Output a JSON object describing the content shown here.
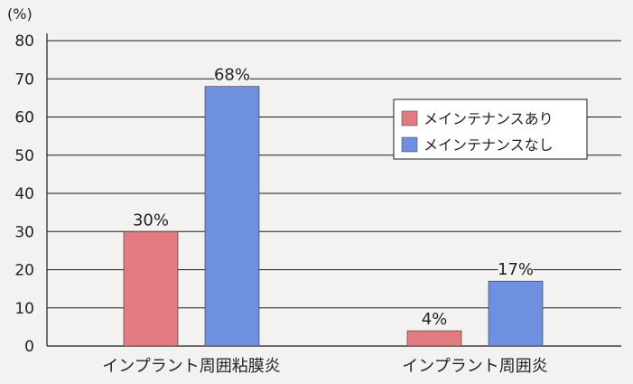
{
  "chart_data": {
    "type": "bar",
    "categories": [
      "インプラント周囲粘膜炎",
      "インプラント周囲炎"
    ],
    "series": [
      {
        "name": "メインテナンスあり",
        "values": [
          30,
          4
        ],
        "labels": [
          "30%",
          "4%"
        ],
        "color": "#e27a80"
      },
      {
        "name": "メインテナンスなし",
        "values": [
          68,
          17
        ],
        "labels": [
          "68%",
          "17%"
        ],
        "color": "#6f8fe0"
      }
    ],
    "y_unit": "(%)",
    "ylim": [
      0,
      80
    ],
    "yticks": [
      0,
      10,
      20,
      30,
      40,
      50,
      60,
      70,
      80
    ],
    "grid": true,
    "legend_position": "top-right"
  }
}
